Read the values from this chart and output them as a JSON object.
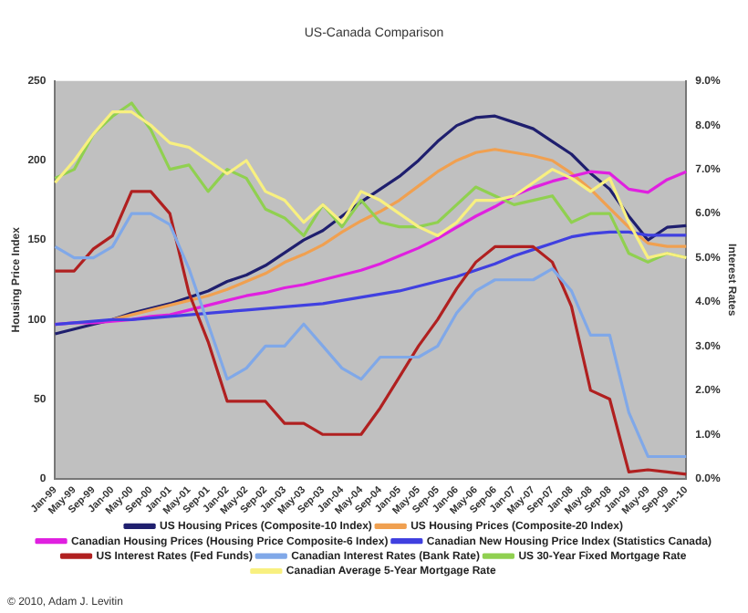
{
  "chart_data": {
    "type": "line",
    "title": "US-Canada Comparison",
    "ylabel": "Housing Price Index",
    "y2label": "Interest Rates",
    "categories": [
      "Jan-99",
      "May-99",
      "Sep-99",
      "Jan-00",
      "May-00",
      "Sep-00",
      "Jan-01",
      "May-01",
      "Sep-01",
      "Jan-02",
      "May-02",
      "Sep-02",
      "Jan-03",
      "May-03",
      "Sep-03",
      "Jan-04",
      "May-04",
      "Sep-04",
      "Jan-05",
      "May-05",
      "Sep-05",
      "Jan-06",
      "May-06",
      "Sep-06",
      "Jan-07",
      "May-07",
      "Sep-07",
      "Jan-08",
      "May-08",
      "Sep-08",
      "Jan-09",
      "May-09",
      "Sep-09",
      "Jan-10"
    ],
    "ylim": [
      0,
      250
    ],
    "yticks": [
      0,
      50,
      100,
      150,
      200,
      250
    ],
    "y2lim": [
      0,
      9
    ],
    "y2ticks": [
      {
        "value": 0,
        "label": "0.0%"
      },
      {
        "value": 1,
        "label": "1.0%"
      },
      {
        "value": 2,
        "label": "2.0%"
      },
      {
        "value": 3,
        "label": "3.0%"
      },
      {
        "value": 4,
        "label": "4.0%"
      },
      {
        "value": 5,
        "label": "5.0%"
      },
      {
        "value": 6,
        "label": "6.0%"
      },
      {
        "value": 7,
        "label": "7.0%"
      },
      {
        "value": 8,
        "label": "8.0%"
      },
      {
        "value": 9,
        "label": "9.0%"
      }
    ],
    "legend": "bottom",
    "marker": "none",
    "series": [
      {
        "name": "US Housing Prices (Composite-10 Index)",
        "color": "#1f1f6e",
        "values": [
          91,
          94,
          97,
          100,
          104,
          107,
          110,
          114,
          118,
          124,
          128,
          134,
          142,
          150,
          156,
          165,
          174,
          182,
          190,
          200,
          212,
          222,
          227,
          228,
          224,
          220,
          212,
          204,
          192,
          182,
          165,
          150,
          158,
          159
        ]
      },
      {
        "name": "US Housing Prices (Composite-20 Index)",
        "color": "#f0a050",
        "values": [
          null,
          null,
          null,
          100,
          103,
          106,
          109,
          112,
          115,
          119,
          124,
          129,
          136,
          141,
          147,
          155,
          162,
          168,
          175,
          184,
          193,
          200,
          205,
          207,
          205,
          203,
          200,
          192,
          182,
          170,
          158,
          148,
          146,
          146
        ]
      },
      {
        "name": "Canadian Housing Prices (Housing Price Composite-6 Index)",
        "color": "#e020e0",
        "values": [
          97,
          98,
          98,
          99,
          100,
          102,
          103,
          106,
          109,
          112,
          115,
          117,
          120,
          122,
          125,
          128,
          131,
          135,
          140,
          145,
          151,
          158,
          165,
          171,
          178,
          183,
          187,
          190,
          193,
          192,
          182,
          180,
          188,
          193
        ]
      },
      {
        "name": "Canadian New Housing Price Index (Statistics Canada)",
        "color": "#4040e0",
        "values": [
          97,
          98,
          99,
          100,
          100,
          101,
          102,
          103,
          104,
          105,
          106,
          107,
          108,
          109,
          110,
          112,
          114,
          116,
          118,
          121,
          124,
          127,
          131,
          135,
          140,
          144,
          148,
          152,
          154,
          155,
          155,
          153,
          153,
          153
        ]
      },
      {
        "name": "US Interest Rates (Fed Funds)",
        "color": "#b02020",
        "values": [
          4.7,
          4.7,
          5.2,
          5.5,
          6.5,
          6.5,
          6.0,
          4.2,
          3.1,
          1.75,
          1.75,
          1.75,
          1.25,
          1.25,
          1.0,
          1.0,
          1.0,
          1.6,
          2.3,
          3.0,
          3.6,
          4.3,
          4.9,
          5.25,
          5.25,
          5.25,
          4.9,
          3.9,
          2.0,
          1.8,
          0.15,
          0.2,
          0.15,
          0.1
        ],
        "axis": "y2"
      },
      {
        "name": "Canadian Interest Rates (Bank Rate)",
        "color": "#80a8e8",
        "values": [
          5.25,
          5.0,
          5.0,
          5.25,
          6.0,
          6.0,
          5.75,
          4.75,
          3.5,
          2.25,
          2.5,
          3.0,
          3.0,
          3.5,
          3.0,
          2.5,
          2.25,
          2.75,
          2.75,
          2.75,
          3.0,
          3.75,
          4.25,
          4.5,
          4.5,
          4.5,
          4.75,
          4.25,
          3.25,
          3.25,
          1.5,
          0.5,
          0.5,
          0.5
        ],
        "axis": "y2"
      },
      {
        "name": "US 30-Year Fixed Mortgage Rate",
        "color": "#90d050",
        "values": [
          6.8,
          7.0,
          7.8,
          8.2,
          8.5,
          7.9,
          7.0,
          7.1,
          6.5,
          7.0,
          6.8,
          6.1,
          5.9,
          5.5,
          6.2,
          5.7,
          6.3,
          5.8,
          5.7,
          5.7,
          5.8,
          6.2,
          6.6,
          6.4,
          6.2,
          6.3,
          6.4,
          5.8,
          6.0,
          6.0,
          5.1,
          4.9,
          5.1,
          5.0
        ],
        "axis": "y2"
      },
      {
        "name": "Canadian Average 5-Year Mortgage Rate",
        "color": "#f8f080",
        "values": [
          6.7,
          7.2,
          7.8,
          8.3,
          8.3,
          8.0,
          7.6,
          7.5,
          7.2,
          6.9,
          7.2,
          6.5,
          6.3,
          5.8,
          6.2,
          5.8,
          6.5,
          6.3,
          6.0,
          5.7,
          5.5,
          5.8,
          6.3,
          6.3,
          6.4,
          6.7,
          7.0,
          6.8,
          6.5,
          6.8,
          5.8,
          5.0,
          5.1,
          5.0
        ],
        "axis": "y2"
      }
    ],
    "annotations": [
      "© 2010, Adam J. Levitin"
    ]
  }
}
